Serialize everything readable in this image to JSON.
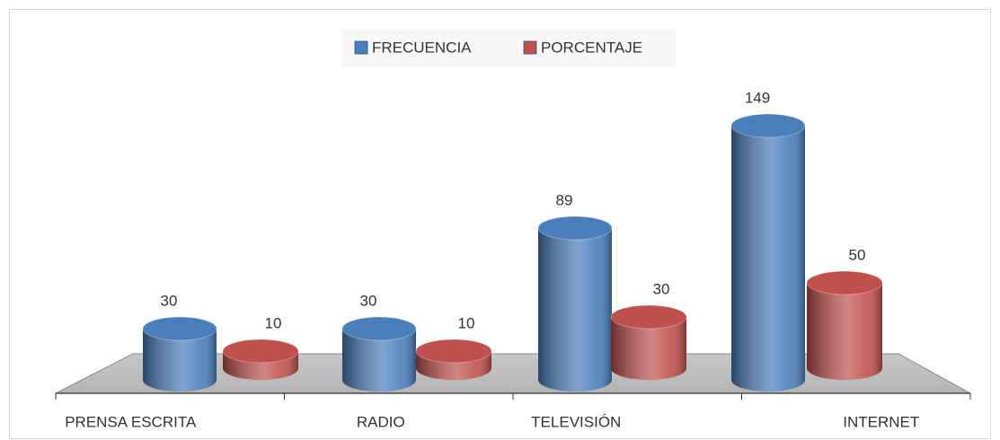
{
  "chart_data": {
    "type": "bar3d",
    "categories": [
      "PRENSA ESCRITA",
      "RADIO",
      "TELEVISIÓN",
      "INTERNET"
    ],
    "series": [
      {
        "name": "FRECUENCIA",
        "color": "#4a7ebb",
        "values": [
          30,
          30,
          89,
          149
        ]
      },
      {
        "name": "PORCENTAJE",
        "color": "#c0504d",
        "values": [
          10,
          10,
          30,
          50
        ]
      }
    ],
    "legend": "top"
  }
}
